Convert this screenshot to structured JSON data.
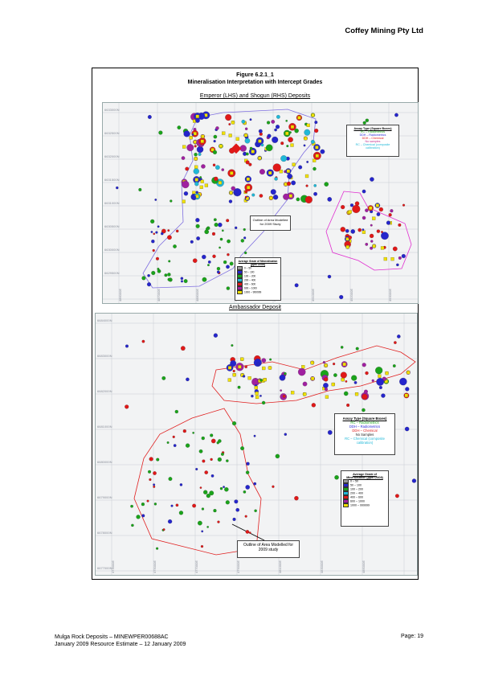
{
  "header": {
    "company": "Coffey Mining Pty Ltd"
  },
  "figure": {
    "number": "Figure 6.2.1_1",
    "title": "Mineralisation Interpretation with Intercept Grades",
    "map1": {
      "subtitle": "Emperor (LHS) and Shogun (RHS) Deposits",
      "northings": [
        "6633000N",
        "6632500N",
        "6632000N",
        "6631500N",
        "6631000N",
        "6630500N",
        "6630000N",
        "6629500N"
      ],
      "eastings": [
        "486000E",
        "487000E",
        "488000E",
        "489000E",
        "490000E",
        "491000E",
        "492000E",
        "493000E"
      ],
      "assay_legend": {
        "title": "Assay Type (Square Boxes)",
        "items": [
          {
            "text": "RC – Radiometrics",
            "color": "#1aa31a"
          },
          {
            "text": "DDH – Radiometrics",
            "color": "#2a2ad8"
          },
          {
            "text": "DDH – Chemical",
            "color": "#e01818"
          },
          {
            "text": "No samples",
            "color": "#c03090"
          },
          {
            "text": "RC – Chemical (composite calibration)",
            "color": "#20b8d8"
          }
        ]
      },
      "callout": "Outline of Area Modelled for 2009 Study",
      "grade_legend": {
        "title": "Average Grade of Mineralisation (ppm U3O8)",
        "items": [
          {
            "text": "0 – 50",
            "color": "#9a9a9a"
          },
          {
            "text": "50 – 100",
            "color": "#2525cc"
          },
          {
            "text": "100 – 200",
            "color": "#1aa31a"
          },
          {
            "text": "200 – 400",
            "color": "#20b8d8"
          },
          {
            "text": "400 – 600",
            "color": "#e01818"
          },
          {
            "text": "600 – 1000",
            "color": "#a020a0"
          },
          {
            "text": "1000 – 999999",
            "color": "#f0e000"
          }
        ]
      }
    },
    "map2": {
      "subtitle": "Ambassador Deposit",
      "northings": [
        "6684000N",
        "6683000N",
        "6682000N",
        "6681000N",
        "6680000N",
        "6679000N",
        "6678000N",
        "6677000N"
      ],
      "eastings": [
        "473000E",
        "475000E",
        "477000E",
        "479000E",
        "481000E",
        "483000E",
        "485000E"
      ],
      "assay_legend": {
        "title": "Assay Type (Square Boxes)",
        "items": [
          {
            "text": "RC – Radiometrics",
            "color": "#1aa31a"
          },
          {
            "text": "DDH – Radiometrics",
            "color": "#2a2ad8"
          },
          {
            "text": "DDH – Chemical",
            "color": "#e01818"
          },
          {
            "text": "No Samples",
            "color": "#222222"
          },
          {
            "text": "RC – Chemical (composite calibration)",
            "color": "#20b8d8"
          }
        ]
      },
      "callout": "Outline of Area Modelled for 2009 study",
      "grade_legend": {
        "title": "Average Grade of Mineralisation (ppm U3O8)",
        "items": [
          {
            "text": "0 – 50",
            "color": "#9a9a9a"
          },
          {
            "text": "50 – 100",
            "color": "#2525cc"
          },
          {
            "text": "100 – 200",
            "color": "#1aa31a"
          },
          {
            "text": "200 – 400",
            "color": "#20b8d8"
          },
          {
            "text": "400 – 600",
            "color": "#e01818"
          },
          {
            "text": "600 – 1000",
            "color": "#a020a0"
          },
          {
            "text": "1000 – 999999",
            "color": "#f0e000"
          }
        ]
      }
    }
  },
  "footer": {
    "line1": "Mulga Rock Deposits – MINEWPER00688AC",
    "line2": "January 2009 Resource Estimate – 12 January 2009",
    "page": "Page:  19"
  }
}
